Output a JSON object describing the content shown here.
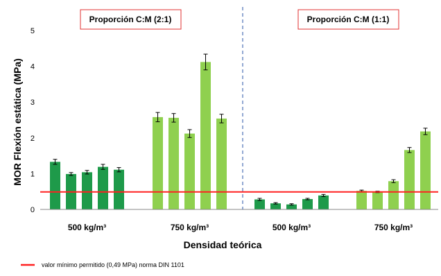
{
  "chart_data": {
    "type": "bar",
    "ylabel": "MOR Flexión estática (MPa)",
    "xlabel": "Densidad teórica",
    "ylim": [
      0,
      5
    ],
    "yticks": [
      "0",
      "1",
      "2",
      "3",
      "4",
      "5"
    ],
    "panels": [
      "Proporción C:M (2:1)",
      "Proporción C:M (1:1)"
    ],
    "groups": [
      {
        "label": "500 kg/m³",
        "panel": 0,
        "color": "#1e9a4a",
        "values": [
          1.33,
          0.99,
          1.04,
          1.19,
          1.11
        ],
        "errors": [
          0.07,
          0.04,
          0.05,
          0.07,
          0.06
        ]
      },
      {
        "label": "750 kg/m³",
        "panel": 0,
        "color": "#8fd04f",
        "values": [
          2.58,
          2.56,
          2.12,
          4.12,
          2.54
        ],
        "errors": [
          0.13,
          0.12,
          0.11,
          0.22,
          0.12
        ]
      },
      {
        "label": "500 kg/m³",
        "panel": 1,
        "color": "#1e9a4a",
        "values": [
          0.28,
          0.17,
          0.14,
          0.29,
          0.39
        ],
        "errors": [
          0.03,
          0.02,
          0.02,
          0.02,
          0.03
        ]
      },
      {
        "label": "750 kg/m³",
        "panel": 1,
        "color": "#8fd04f",
        "values": [
          0.52,
          0.49,
          0.79,
          1.66,
          2.18
        ],
        "errors": [
          0.02,
          0.02,
          0.04,
          0.07,
          0.09
        ]
      }
    ],
    "reference_line": {
      "value": 0.49,
      "color": "#ff0000",
      "label": "valor  mínimo permitido (0,49 MPa)  norma DIN 1101"
    },
    "grid": false,
    "legend": "bottom-left"
  }
}
